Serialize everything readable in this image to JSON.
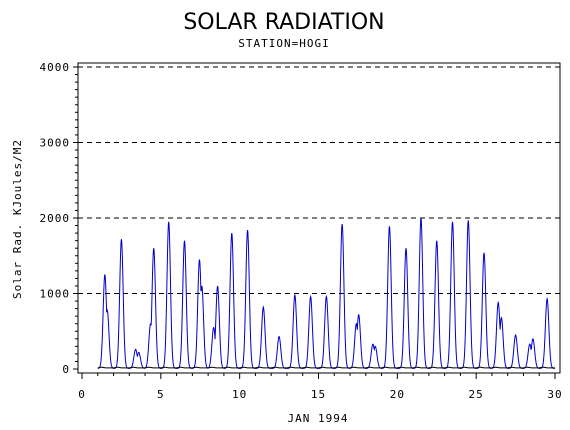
{
  "chart_data": {
    "type": "line",
    "title": "SOLAR RADIATION",
    "subtitle": "STATION=HOGI",
    "xlabel": "JAN 1994",
    "ylabel": "Solar Rad. KJoules/M2",
    "xlim": [
      0,
      30
    ],
    "ylim": [
      0,
      4000
    ],
    "x_ticks": [
      0,
      5,
      10,
      15,
      20,
      25,
      30
    ],
    "y_ticks": [
      0,
      1000,
      2000,
      3000,
      4000
    ],
    "grid": "horizontal-dashed",
    "series": [
      {
        "color": "#0000cc",
        "daily_peaks": [
          {
            "day": 1,
            "peaks": [
              {
                "dx": 0.45,
                "v": 1250
              },
              {
                "dx": 0.6,
                "v": 780
              }
            ]
          },
          {
            "day": 2,
            "peaks": [
              {
                "dx": 0.5,
                "v": 1720
              }
            ]
          },
          {
            "day": 3,
            "peaks": [
              {
                "dx": 0.4,
                "v": 260
              },
              {
                "dx": 0.6,
                "v": 220
              }
            ]
          },
          {
            "day": 4,
            "peaks": [
              {
                "dx": 0.35,
                "v": 600
              },
              {
                "dx": 0.55,
                "v": 1600
              }
            ]
          },
          {
            "day": 5,
            "peaks": [
              {
                "dx": 0.5,
                "v": 1950
              }
            ]
          },
          {
            "day": 6,
            "peaks": [
              {
                "dx": 0.5,
                "v": 1700
              }
            ]
          },
          {
            "day": 7,
            "peaks": [
              {
                "dx": 0.45,
                "v": 1450
              },
              {
                "dx": 0.6,
                "v": 1100
              }
            ]
          },
          {
            "day": 8,
            "peaks": [
              {
                "dx": 0.35,
                "v": 550
              },
              {
                "dx": 0.6,
                "v": 1100
              }
            ]
          },
          {
            "day": 9,
            "peaks": [
              {
                "dx": 0.5,
                "v": 1800
              }
            ]
          },
          {
            "day": 10,
            "peaks": [
              {
                "dx": 0.5,
                "v": 1840
              }
            ]
          },
          {
            "day": 11,
            "peaks": [
              {
                "dx": 0.5,
                "v": 820
              }
            ]
          },
          {
            "day": 12,
            "peaks": [
              {
                "dx": 0.5,
                "v": 430
              }
            ]
          },
          {
            "day": 13,
            "peaks": [
              {
                "dx": 0.5,
                "v": 980
              }
            ]
          },
          {
            "day": 14,
            "peaks": [
              {
                "dx": 0.5,
                "v": 960
              }
            ]
          },
          {
            "day": 15,
            "peaks": [
              {
                "dx": 0.5,
                "v": 960
              }
            ]
          },
          {
            "day": 16,
            "peaks": [
              {
                "dx": 0.5,
                "v": 1920
              }
            ]
          },
          {
            "day": 17,
            "peaks": [
              {
                "dx": 0.4,
                "v": 600
              },
              {
                "dx": 0.55,
                "v": 720
              }
            ]
          },
          {
            "day": 18,
            "peaks": [
              {
                "dx": 0.45,
                "v": 330
              },
              {
                "dx": 0.6,
                "v": 300
              }
            ]
          },
          {
            "day": 19,
            "peaks": [
              {
                "dx": 0.5,
                "v": 1890
              }
            ]
          },
          {
            "day": 20,
            "peaks": [
              {
                "dx": 0.55,
                "v": 1600
              }
            ]
          },
          {
            "day": 21,
            "peaks": [
              {
                "dx": 0.5,
                "v": 2000
              }
            ]
          },
          {
            "day": 22,
            "peaks": [
              {
                "dx": 0.5,
                "v": 1700
              }
            ]
          },
          {
            "day": 23,
            "peaks": [
              {
                "dx": 0.5,
                "v": 1950
              }
            ]
          },
          {
            "day": 24,
            "peaks": [
              {
                "dx": 0.5,
                "v": 1970
              }
            ]
          },
          {
            "day": 25,
            "peaks": [
              {
                "dx": 0.5,
                "v": 1540
              }
            ]
          },
          {
            "day": 26,
            "peaks": [
              {
                "dx": 0.4,
                "v": 880
              },
              {
                "dx": 0.6,
                "v": 680
              }
            ]
          },
          {
            "day": 27,
            "peaks": [
              {
                "dx": 0.5,
                "v": 450
              }
            ]
          },
          {
            "day": 28,
            "peaks": [
              {
                "dx": 0.4,
                "v": 330
              },
              {
                "dx": 0.6,
                "v": 400
              }
            ]
          },
          {
            "day": 29,
            "peaks": [
              {
                "dx": 0.5,
                "v": 930
              }
            ]
          }
        ]
      },
      {
        "color": "#000000",
        "baseline_value": 15
      }
    ]
  }
}
